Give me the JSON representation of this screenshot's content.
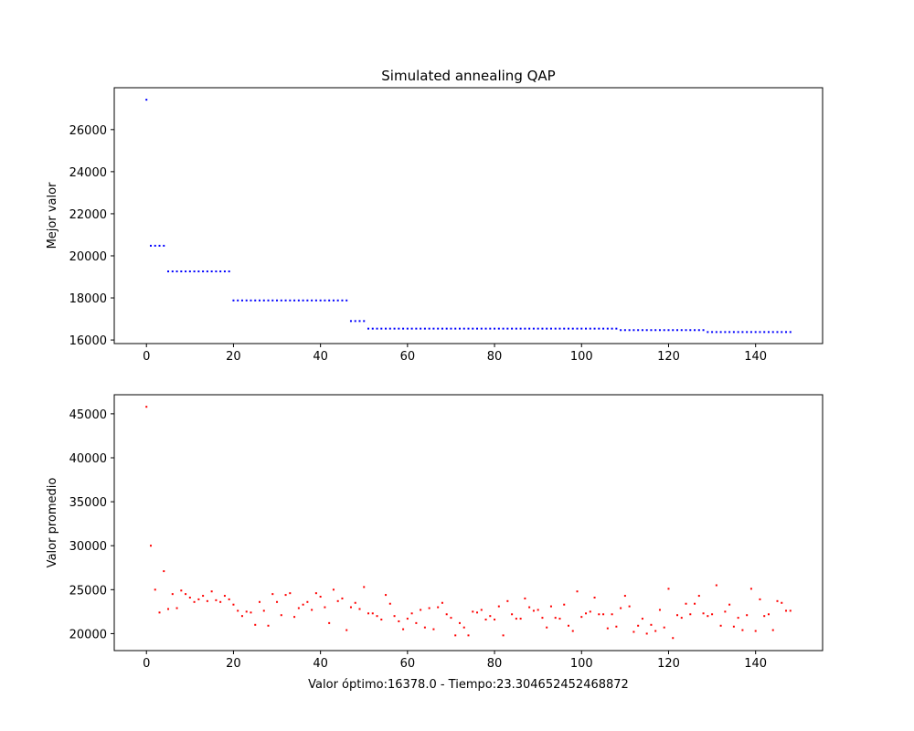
{
  "chart_data": [
    {
      "type": "scatter",
      "title": "Simulated annealing QAP",
      "xlabel": "",
      "ylabel": "Mejor valor",
      "xlim": [
        -7.4,
        155.4
      ],
      "ylim": [
        15830,
        27990
      ],
      "xticks": [
        0,
        20,
        40,
        60,
        80,
        100,
        120,
        140
      ],
      "yticks": [
        16000,
        18000,
        20000,
        22000,
        24000,
        26000
      ],
      "color": "#0000ff",
      "segments": [
        {
          "from": 0,
          "to": 0,
          "value": 27420
        },
        {
          "from": 1,
          "to": 4,
          "value": 20480
        },
        {
          "from": 5,
          "to": 19,
          "value": 19260
        },
        {
          "from": 20,
          "to": 46,
          "value": 17880
        },
        {
          "from": 47,
          "to": 50,
          "value": 16900
        },
        {
          "from": 51,
          "to": 108,
          "value": 16540
        },
        {
          "from": 109,
          "to": 128,
          "value": 16470
        },
        {
          "from": 129,
          "to": 148,
          "value": 16378
        }
      ]
    },
    {
      "type": "scatter",
      "title": "",
      "xlabel": "Valor óptimo:16378.0 - Tiempo:23.304652452468872",
      "ylabel": "Valor promedio",
      "xlim": [
        -7.4,
        155.4
      ],
      "ylim": [
        18070,
        47170
      ],
      "xticks": [
        0,
        20,
        40,
        60,
        80,
        100,
        120,
        140
      ],
      "yticks": [
        20000,
        25000,
        30000,
        35000,
        40000,
        45000
      ],
      "color": "#ff0000",
      "x_start": 0,
      "values": [
        45800,
        30000,
        25000,
        22400,
        27100,
        22800,
        24500,
        22900,
        24900,
        24500,
        24100,
        23600,
        23900,
        24300,
        23700,
        24800,
        23800,
        23600,
        24300,
        23900,
        23300,
        22600,
        22000,
        22500,
        22400,
        21000,
        23600,
        22600,
        20900,
        24500,
        23600,
        22100,
        24400,
        24600,
        21900,
        22900,
        23300,
        23600,
        22700,
        24600,
        24200,
        23000,
        21200,
        25000,
        23700,
        24000,
        20400,
        23000,
        23500,
        22800,
        25300,
        22300,
        22300,
        22000,
        21600,
        24400,
        23400,
        22000,
        21400,
        20500,
        21700,
        22300,
        21200,
        22700,
        20700,
        22900,
        20500,
        23000,
        23500,
        22200,
        21800,
        19800,
        21200,
        20700,
        19800,
        22500,
        22400,
        22700,
        21600,
        22000,
        21600,
        23100,
        19800,
        23700,
        22200,
        21700,
        21700,
        24000,
        23000,
        22600,
        22700,
        21800,
        20700,
        23100,
        21800,
        21700,
        23300,
        20900,
        20300,
        24800,
        21900,
        22300,
        22500,
        24100,
        22200,
        22200,
        20600,
        22200,
        20800,
        22900,
        24300,
        23100,
        20200,
        20900,
        21700,
        20000,
        21000,
        20300,
        22700,
        20700,
        25100,
        19500,
        22100,
        21800,
        23400,
        22200,
        23400,
        24300,
        22300,
        22000,
        22200,
        25500,
        20900,
        22500,
        23300,
        20800,
        21800,
        20400,
        22100,
        25100,
        20300,
        23900,
        22000,
        22200,
        20400,
        23700,
        23500,
        22600,
        22600
      ]
    }
  ]
}
